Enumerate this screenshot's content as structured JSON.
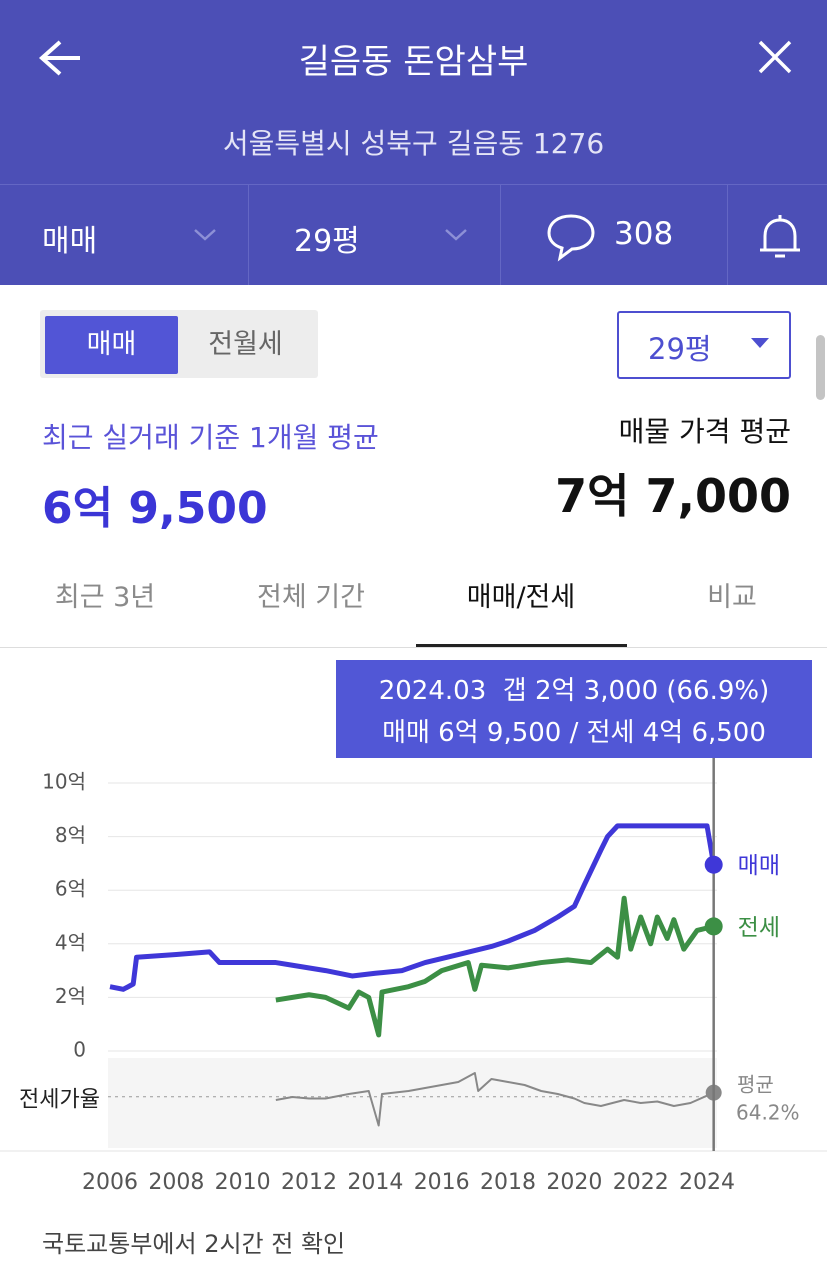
{
  "header": {
    "title": "길음동 돈암삼부",
    "address": "서울특별시 성북구 길음동 1276"
  },
  "filters": {
    "trade_type": "매매",
    "size": "29평",
    "comments": 308
  },
  "toggle": {
    "options": [
      "매매",
      "전월세"
    ],
    "selected": 0
  },
  "size_select": "29평",
  "summary": {
    "recent_label": "최근 실거래 기준 1개월 평균",
    "recent_price": "6억 9,500",
    "listing_label": "매물 가격 평균",
    "listing_price": "7억 7,000"
  },
  "tabs": {
    "items": [
      "최근 3년",
      "전체 기간",
      "매매/전세",
      "비교"
    ],
    "selected": 2
  },
  "tooltip": {
    "line1": "2024.03  갭 2억 3,000 (66.9%)",
    "line2": "매매 6억 9,500 / 전세 4억 6,500"
  },
  "chart_data": [
    {
      "type": "line",
      "xlim": [
        2006,
        2024.3
      ],
      "xticks": [
        2006,
        2008,
        2010,
        2012,
        2014,
        2016,
        2018,
        2020,
        2022,
        2024
      ],
      "ylim": [
        0,
        10
      ],
      "yticks": [
        0,
        {
          "value": 2,
          "label": "2억"
        },
        {
          "value": 4,
          "label": "4억"
        },
        {
          "value": 6,
          "label": "6억"
        },
        {
          "value": 8,
          "label": "8억"
        },
        {
          "value": 10,
          "label": "10억"
        }
      ],
      "grid": true,
      "legend": "right-end",
      "cursor_x": 2024.2,
      "series": [
        {
          "name": "매매",
          "color": "#3f37d8",
          "x": [
            2006.0,
            2006.4,
            2006.7,
            2006.8,
            2008.0,
            2009.0,
            2009.3,
            2011.0,
            2011.5,
            2012.5,
            2013.3,
            2014.0,
            2014.8,
            2015.5,
            2016.5,
            2017.5,
            2018.0,
            2018.8,
            2019.5,
            2020.0,
            2020.3,
            2020.8,
            2021.0,
            2021.3,
            2024.0,
            2024.2
          ],
          "values": [
            2.4,
            2.3,
            2.5,
            3.5,
            3.6,
            3.7,
            3.3,
            3.3,
            3.2,
            3.0,
            2.8,
            2.9,
            3.0,
            3.3,
            3.6,
            3.9,
            4.1,
            4.5,
            5.0,
            5.4,
            6.2,
            7.5,
            8.0,
            8.4,
            8.4,
            6.95
          ]
        },
        {
          "name": "전세",
          "color": "#3c8f45",
          "x": [
            2011.0,
            2011.5,
            2012.0,
            2012.5,
            2013.2,
            2013.5,
            2013.8,
            2014.1,
            2014.2,
            2015.0,
            2015.5,
            2016.0,
            2016.8,
            2017.0,
            2017.2,
            2018.0,
            2019.0,
            2019.8,
            2020.5,
            2021.0,
            2021.3,
            2021.5,
            2021.7,
            2022.0,
            2022.3,
            2022.5,
            2022.8,
            2023.0,
            2023.3,
            2023.7,
            2024.2
          ],
          "values": [
            1.9,
            2.0,
            2.1,
            2.0,
            1.6,
            2.2,
            2.0,
            0.6,
            2.2,
            2.4,
            2.6,
            3.0,
            3.3,
            2.3,
            3.2,
            3.1,
            3.3,
            3.4,
            3.3,
            3.8,
            3.5,
            5.7,
            3.8,
            5.0,
            4.0,
            5.0,
            4.2,
            4.9,
            3.8,
            4.5,
            4.65
          ]
        }
      ]
    },
    {
      "type": "line",
      "ylabel": "전세가율",
      "ylim": [
        30,
        90
      ],
      "average": {
        "label": "평균",
        "value": 64.2,
        "value_label": "64.2%"
      },
      "series": [
        {
          "color": "#888888",
          "x": [
            2011.0,
            2011.5,
            2012.0,
            2012.5,
            2013.2,
            2013.8,
            2014.1,
            2014.2,
            2015.0,
            2015.5,
            2016.0,
            2016.5,
            2017.0,
            2017.1,
            2017.5,
            2018.0,
            2018.5,
            2019.0,
            2019.5,
            2020.0,
            2020.3,
            2020.8,
            2021.5,
            2022.0,
            2022.5,
            2023.0,
            2023.5,
            2024.2
          ],
          "values": [
            62,
            64,
            63,
            63,
            66,
            68,
            45,
            66,
            68,
            70,
            72,
            74,
            80,
            68,
            76,
            74,
            72,
            68,
            66,
            63,
            60,
            58,
            62,
            60,
            61,
            58,
            60,
            66.9
          ]
        }
      ]
    }
  ],
  "footer": "국토교통부에서 2시간 전 확인"
}
